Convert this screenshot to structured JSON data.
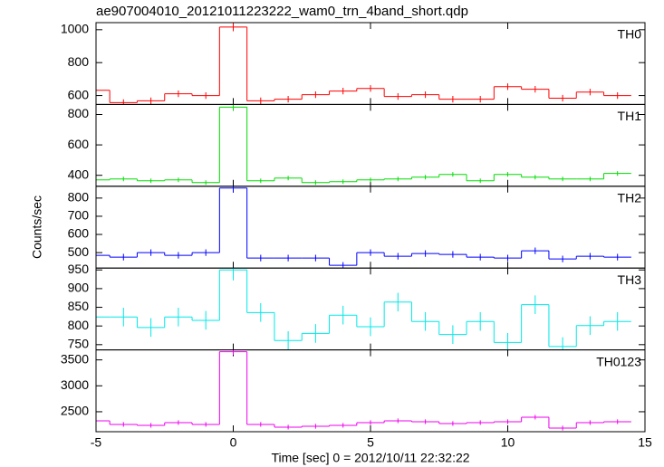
{
  "title": "ae907004010_20121011223222_wam0_trn_4band_short.qdp",
  "xlabel": "Time [sec] 0 = 2012/10/11 22:32:22",
  "ylabel": "Counts/sec",
  "chart_data": [
    {
      "type": "step",
      "label": "TH0",
      "color": "#ff0000",
      "x": [
        -5,
        -4,
        -3,
        -2,
        -1,
        0,
        1,
        2,
        3,
        4,
        5,
        6,
        7,
        8,
        9,
        10,
        11,
        12,
        13,
        14
      ],
      "values": [
        632,
        557,
        568,
        611,
        600,
        1016,
        568,
        578,
        605,
        627,
        643,
        594,
        605,
        578,
        578,
        654,
        638,
        584,
        621,
        600
      ],
      "errors": [
        20,
        20,
        20,
        20,
        20,
        25,
        20,
        20,
        20,
        20,
        20,
        20,
        20,
        20,
        20,
        20,
        20,
        20,
        20,
        20
      ],
      "xlim": [
        -5,
        15
      ],
      "xticks": [
        -5,
        0,
        5,
        10,
        15
      ],
      "ylim": [
        546,
        1043
      ],
      "yticks": [
        600,
        800,
        1000
      ]
    },
    {
      "type": "step",
      "label": "TH1",
      "color": "#00dd00",
      "x": [
        -5,
        -4,
        -3,
        -2,
        -1,
        0,
        1,
        2,
        3,
        4,
        5,
        6,
        7,
        8,
        9,
        10,
        11,
        12,
        13,
        14
      ],
      "values": [
        370,
        376,
        364,
        370,
        352,
        848,
        364,
        382,
        352,
        358,
        370,
        376,
        388,
        406,
        364,
        406,
        388,
        376,
        376,
        412
      ],
      "errors": [
        15,
        15,
        15,
        15,
        15,
        22,
        15,
        15,
        15,
        15,
        15,
        15,
        15,
        15,
        15,
        15,
        15,
        15,
        15,
        15
      ],
      "xlim": [
        -5,
        15
      ],
      "xticks": [
        -5,
        0,
        5,
        10,
        15
      ],
      "ylim": [
        328,
        866
      ],
      "yticks": [
        400,
        600,
        800
      ]
    },
    {
      "type": "step",
      "label": "TH2",
      "color": "#0000ff",
      "x": [
        -5,
        -4,
        -3,
        -2,
        -1,
        0,
        1,
        2,
        3,
        4,
        5,
        6,
        7,
        8,
        9,
        10,
        11,
        12,
        13,
        14
      ],
      "values": [
        485,
        475,
        500,
        485,
        500,
        855,
        470,
        470,
        470,
        430,
        500,
        480,
        495,
        490,
        475,
        470,
        510,
        465,
        480,
        475
      ],
      "errors": [
        18,
        18,
        18,
        18,
        18,
        25,
        18,
        18,
        18,
        18,
        18,
        18,
        18,
        18,
        18,
        18,
        18,
        18,
        18,
        18
      ],
      "xlim": [
        -5,
        15
      ],
      "xticks": [
        -5,
        0,
        5,
        10,
        15
      ],
      "ylim": [
        415,
        865
      ],
      "yticks": [
        500,
        600,
        700,
        800
      ]
    },
    {
      "type": "step",
      "label": "TH3",
      "color": "#00e8e8",
      "x": [
        -5,
        -4,
        -3,
        -2,
        -1,
        0,
        1,
        2,
        3,
        4,
        5,
        6,
        7,
        8,
        9,
        10,
        11,
        12,
        13,
        14
      ],
      "values": [
        824,
        824,
        796,
        824,
        815,
        950,
        836,
        761,
        780,
        829,
        798,
        864,
        812,
        777,
        812,
        756,
        857,
        745,
        801,
        812
      ],
      "errors": [
        25,
        25,
        25,
        25,
        25,
        28,
        25,
        25,
        25,
        25,
        25,
        25,
        25,
        25,
        25,
        25,
        25,
        25,
        25,
        25
      ],
      "xlim": [
        -5,
        15
      ],
      "xticks": [
        -5,
        0,
        5,
        10,
        15
      ],
      "ylim": [
        736,
        955
      ],
      "yticks": [
        750,
        800,
        850,
        900,
        950
      ]
    },
    {
      "type": "step",
      "label": "TH0123",
      "color": "#ee00ee",
      "x": [
        -5,
        -4,
        -3,
        -2,
        -1,
        0,
        1,
        2,
        3,
        4,
        5,
        6,
        7,
        8,
        9,
        10,
        11,
        12,
        13,
        14
      ],
      "values": [
        2325,
        2255,
        2238,
        2290,
        2255,
        3658,
        2255,
        2203,
        2220,
        2238,
        2290,
        2325,
        2308,
        2273,
        2290,
        2308,
        2395,
        2185,
        2290,
        2308
      ],
      "errors": [
        45,
        45,
        45,
        45,
        45,
        60,
        45,
        45,
        45,
        45,
        45,
        45,
        45,
        45,
        45,
        45,
        45,
        45,
        45,
        45
      ],
      "xlim": [
        -5,
        15
      ],
      "xticks": [
        -5,
        0,
        5,
        10,
        15
      ],
      "ylim": [
        2115,
        3693
      ],
      "yticks": [
        2500,
        3000,
        3500
      ]
    }
  ]
}
